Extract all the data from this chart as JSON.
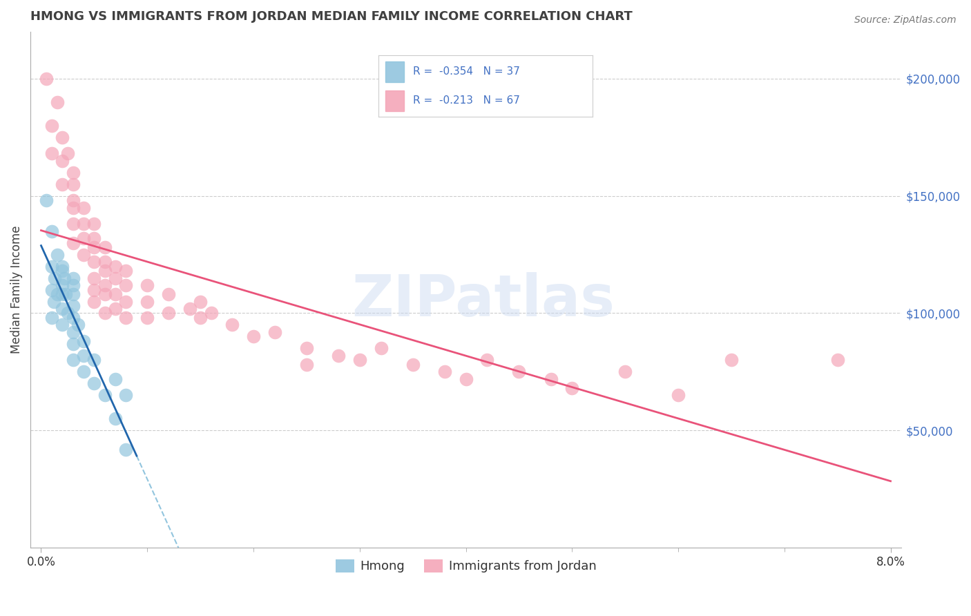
{
  "title": "HMONG VS IMMIGRANTS FROM JORDAN MEDIAN FAMILY INCOME CORRELATION CHART",
  "source": "Source: ZipAtlas.com",
  "ylabel": "Median Family Income",
  "legend_hmong_R": "-0.354",
  "legend_hmong_N": "37",
  "legend_jordan_R": "-0.213",
  "legend_jordan_N": "67",
  "xmin": 0.0,
  "xmax": 0.08,
  "ymin": 0,
  "ymax": 220000,
  "watermark": "ZIPatlas",
  "hmong_color": "#92c5de",
  "jordan_color": "#f4a6b8",
  "hmong_line_color": "#2166ac",
  "jordan_line_color": "#e9537a",
  "dashed_line_color": "#92c5de",
  "grid_color": "#cccccc",
  "title_color": "#404040",
  "ytick_color": "#4472C4",
  "source_color": "#777777",
  "legend_text_color": "#4472C4",
  "hmong_x": [
    0.0005,
    0.001,
    0.001,
    0.001,
    0.001,
    0.0012,
    0.0013,
    0.0015,
    0.0015,
    0.002,
    0.002,
    0.002,
    0.002,
    0.002,
    0.002,
    0.0022,
    0.0023,
    0.0025,
    0.003,
    0.003,
    0.003,
    0.003,
    0.003,
    0.003,
    0.003,
    0.003,
    0.0035,
    0.004,
    0.004,
    0.004,
    0.005,
    0.005,
    0.006,
    0.007,
    0.007,
    0.008,
    0.008
  ],
  "hmong_y": [
    148000,
    135000,
    120000,
    110000,
    98000,
    105000,
    115000,
    125000,
    108000,
    120000,
    118000,
    112000,
    108000,
    102000,
    95000,
    115000,
    108000,
    100000,
    115000,
    112000,
    108000,
    103000,
    98000,
    92000,
    87000,
    80000,
    95000,
    88000,
    82000,
    75000,
    80000,
    70000,
    65000,
    72000,
    55000,
    65000,
    42000
  ],
  "jordan_x": [
    0.0005,
    0.001,
    0.001,
    0.0015,
    0.002,
    0.002,
    0.002,
    0.0025,
    0.003,
    0.003,
    0.003,
    0.003,
    0.003,
    0.003,
    0.004,
    0.004,
    0.004,
    0.004,
    0.005,
    0.005,
    0.005,
    0.005,
    0.005,
    0.005,
    0.005,
    0.006,
    0.006,
    0.006,
    0.006,
    0.006,
    0.006,
    0.007,
    0.007,
    0.007,
    0.007,
    0.008,
    0.008,
    0.008,
    0.008,
    0.01,
    0.01,
    0.01,
    0.012,
    0.012,
    0.014,
    0.015,
    0.015,
    0.016,
    0.018,
    0.02,
    0.022,
    0.025,
    0.025,
    0.028,
    0.03,
    0.032,
    0.035,
    0.038,
    0.04,
    0.042,
    0.045,
    0.048,
    0.05,
    0.055,
    0.06,
    0.065,
    0.075
  ],
  "jordan_y": [
    200000,
    180000,
    168000,
    190000,
    175000,
    165000,
    155000,
    168000,
    160000,
    155000,
    145000,
    138000,
    148000,
    130000,
    145000,
    138000,
    132000,
    125000,
    138000,
    132000,
    128000,
    122000,
    115000,
    110000,
    105000,
    128000,
    122000,
    118000,
    112000,
    108000,
    100000,
    120000,
    115000,
    108000,
    102000,
    118000,
    112000,
    105000,
    98000,
    112000,
    105000,
    98000,
    108000,
    100000,
    102000,
    105000,
    98000,
    100000,
    95000,
    90000,
    92000,
    85000,
    78000,
    82000,
    80000,
    85000,
    78000,
    75000,
    72000,
    80000,
    75000,
    72000,
    68000,
    75000,
    65000,
    80000,
    80000
  ]
}
